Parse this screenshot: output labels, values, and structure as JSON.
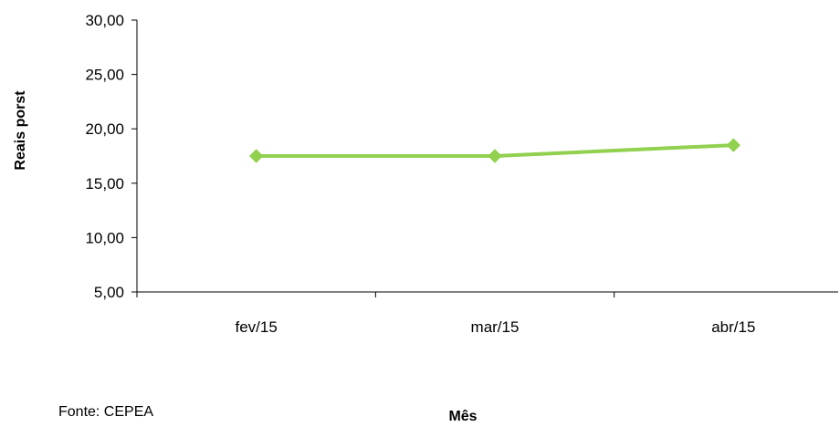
{
  "chart_data": {
    "type": "line",
    "categories": [
      "fev/15",
      "mar/15",
      "abr/15"
    ],
    "series": [
      {
        "values": [
          17.5,
          17.5,
          18.5
        ],
        "color": "#92d050",
        "marker": "diamond"
      }
    ],
    "ylim": [
      5,
      30
    ],
    "yticks": [
      "5,00",
      "10,00",
      "15,00",
      "20,00",
      "25,00",
      "30,00"
    ],
    "ylabel": "Reais porst",
    "xlabel": "Mês",
    "grid": false,
    "legend": "none"
  },
  "source": "Fonte: CEPEA"
}
